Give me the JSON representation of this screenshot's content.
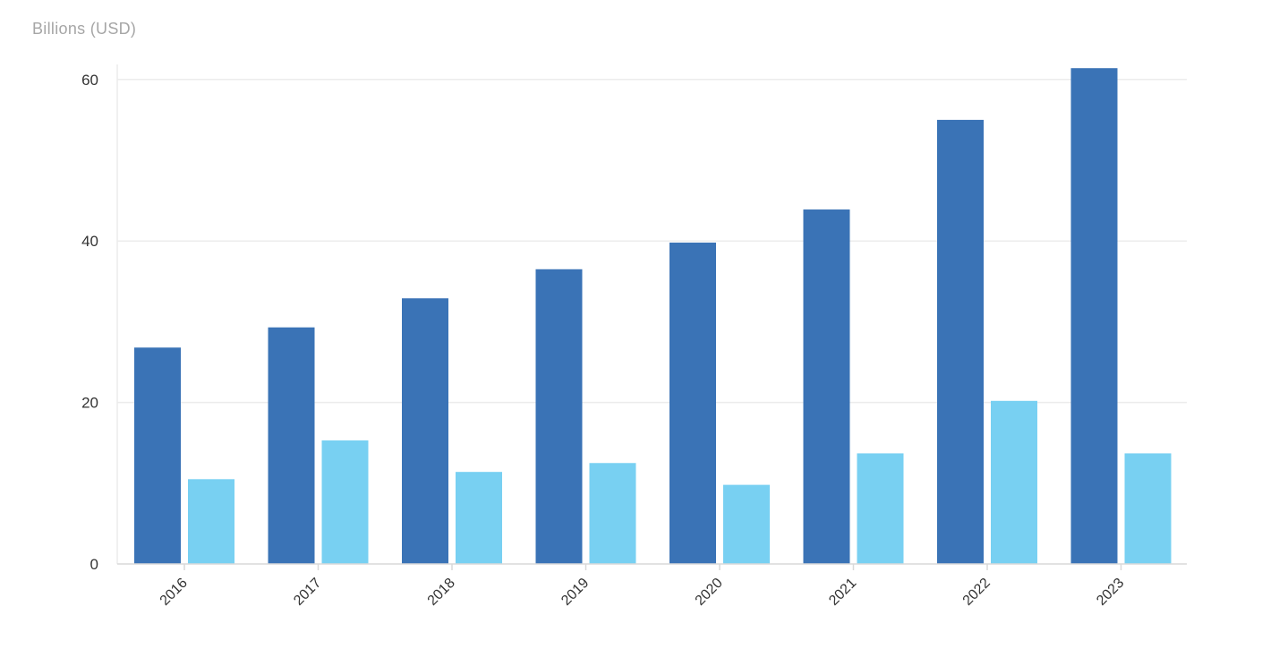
{
  "chart_data": {
    "type": "bar",
    "ylabel": "Billions (USD)",
    "xlabel": "",
    "categories": [
      "2016",
      "2017",
      "2018",
      "2019",
      "2020",
      "2021",
      "2022",
      "2023"
    ],
    "series": [
      {
        "values": [
          26.8,
          29.3,
          32.9,
          36.5,
          39.8,
          43.9,
          55.0,
          61.4
        ],
        "color": "#3a73b6"
      },
      {
        "values": [
          10.5,
          15.3,
          11.4,
          12.5,
          9.8,
          13.7,
          20.2,
          13.7
        ],
        "color": "#78d0f2"
      }
    ],
    "yticks": [
      0,
      20,
      40,
      60
    ],
    "ylim": [
      0,
      61.5
    ],
    "grid": true,
    "legend": "none",
    "colors": {
      "grid": "#ececec",
      "axis": "#d9d9d9",
      "tick_text": "#333333",
      "unit_text": "#a6a6a6"
    }
  }
}
